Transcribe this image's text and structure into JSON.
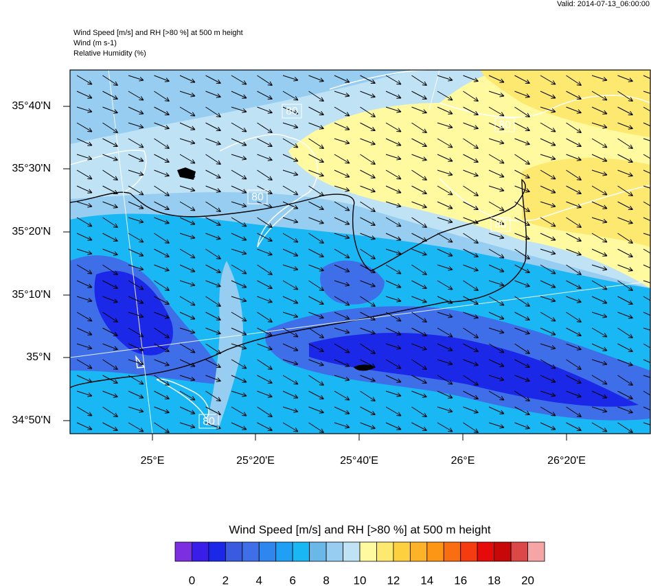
{
  "header": {
    "valid": "Valid: 2014-07-13_06:00:00",
    "lines": [
      "Wind Speed [m/s] and RH [>80 %] at 500 m height",
      "Wind   (m s-1)",
      "Relative Humidity   (%)"
    ]
  },
  "map": {
    "lat_labels": [
      "35°40'N",
      "35°30'N",
      "35°20'N",
      "35°10'N",
      "35°N",
      "34°50'N"
    ],
    "lon_labels": [
      "25°E",
      "25°20'E",
      "25°40'E",
      "26°E",
      "26°20'E"
    ],
    "contour_labels": [
      "80",
      "80",
      "80",
      "80",
      "80"
    ]
  },
  "colorbar": {
    "title": "Wind Speed [m/s] and RH [>80 %] at 500 m height",
    "colors": [
      "#7b2fe0",
      "#3a1de8",
      "#1c28e8",
      "#3a5ae0",
      "#3f6fe8",
      "#2e86ee",
      "#1fa0f5",
      "#19b8f5",
      "#6ab8e8",
      "#96cdf0",
      "#bfe2f5",
      "#fffaa0",
      "#fde870",
      "#fdd040",
      "#fcb328",
      "#fd9614",
      "#f96e10",
      "#f43c10",
      "#e60a0a",
      "#c80808",
      "#dc4848",
      "#f5a5a5"
    ],
    "tick_labels": [
      "0",
      "2",
      "4",
      "6",
      "8",
      "10",
      "12",
      "14",
      "16",
      "18",
      "20"
    ]
  }
}
